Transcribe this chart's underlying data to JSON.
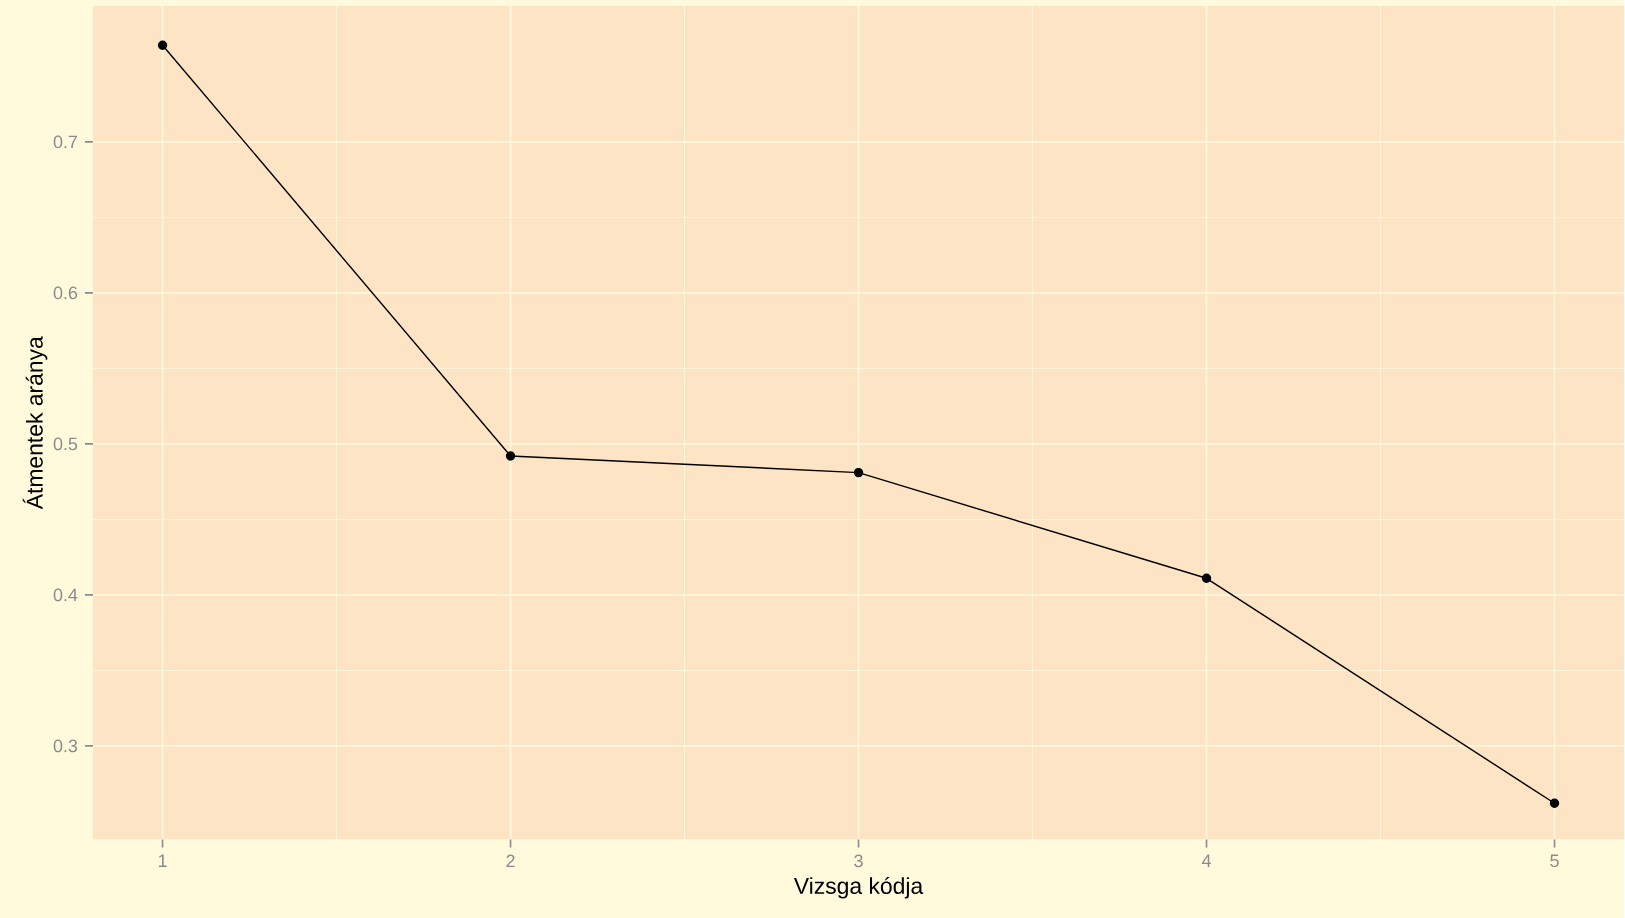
{
  "chart_data": {
    "type": "line",
    "xlabel": "Vizsga kódja",
    "ylabel": "Átmentek aránya",
    "x": [
      1,
      2,
      3,
      4,
      5
    ],
    "series": [
      {
        "color": "#000000",
        "values": [
          0.764,
          0.492,
          0.481,
          0.411,
          0.262
        ]
      }
    ],
    "marker": "circle",
    "line_style": "solid",
    "grid": true,
    "xlim": [
      0.8,
      5.2
    ],
    "ylim": [
      0.238,
      0.79
    ],
    "xticks": [
      1,
      2,
      3,
      4,
      5
    ],
    "yticks": [
      0.3,
      0.4,
      0.5,
      0.6,
      0.7
    ]
  }
}
